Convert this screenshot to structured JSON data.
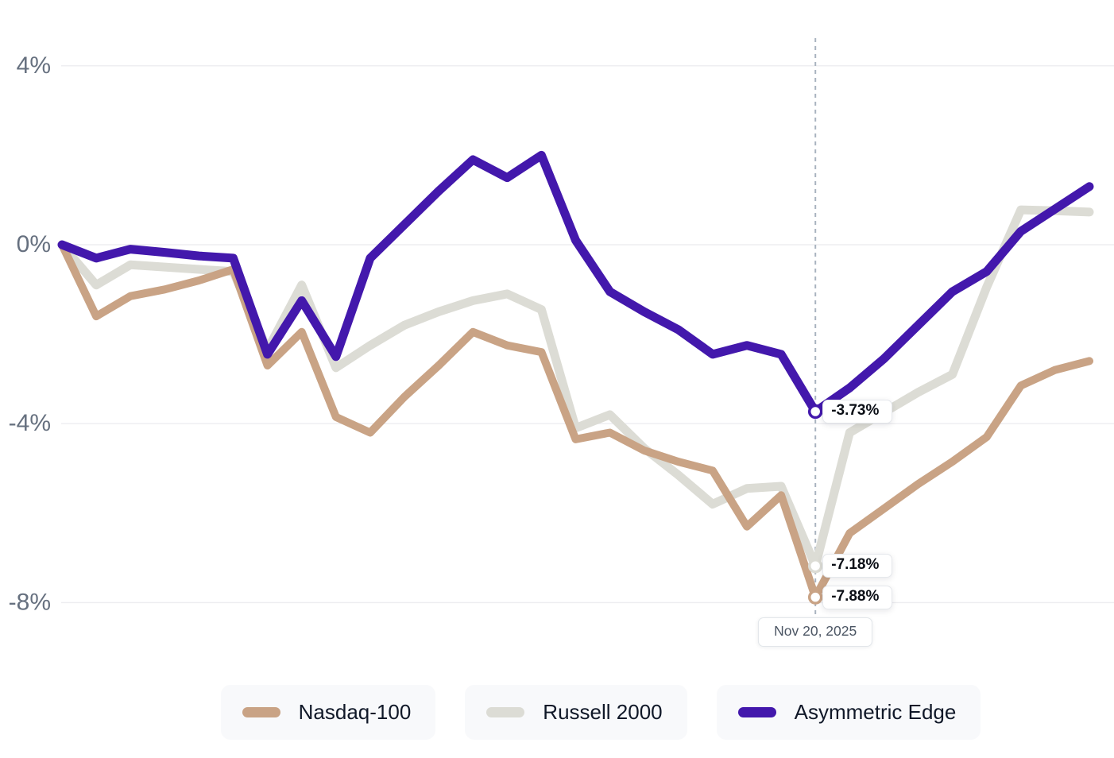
{
  "chart_data": {
    "type": "line",
    "x_count": 31,
    "grid": true,
    "ylim": [
      -8.8,
      4.4
    ],
    "y_ticks": [
      {
        "label": "4%",
        "value": 4
      },
      {
        "label": "0%",
        "value": 0
      },
      {
        "label": "-4%",
        "value": -4
      },
      {
        "label": "-8%",
        "value": -8
      }
    ],
    "annotation": {
      "index": 22,
      "label": "Nov 20, 2025"
    },
    "series": [
      {
        "name": "Nasdaq-100",
        "color": "#c9a385",
        "tooltip": "-7.88%",
        "values": [
          0,
          -1.6,
          -1.15,
          -1.0,
          -0.8,
          -0.55,
          -2.7,
          -1.95,
          -3.85,
          -4.2,
          -3.4,
          -2.7,
          -1.95,
          -2.25,
          -2.4,
          -4.35,
          -4.2,
          -4.6,
          -4.85,
          -5.05,
          -6.3,
          -5.6,
          -7.88,
          -6.45,
          -5.9,
          -5.35,
          -4.85,
          -4.3,
          -3.15,
          -2.8,
          -2.6
        ]
      },
      {
        "name": "Russell 2000",
        "color": "#dcdcd5",
        "tooltip": "-7.18%",
        "values": [
          0,
          -0.9,
          -0.45,
          -0.5,
          -0.55,
          -0.6,
          -2.35,
          -0.9,
          -2.75,
          -2.25,
          -1.8,
          -1.5,
          -1.25,
          -1.1,
          -1.45,
          -4.1,
          -3.8,
          -4.55,
          -5.15,
          -5.8,
          -5.45,
          -5.4,
          -7.18,
          -4.2,
          -3.75,
          -3.3,
          -2.9,
          -0.95,
          0.78,
          0.76,
          0.73
        ]
      },
      {
        "name": "Asymmetric Edge",
        "color": "#4318ac",
        "tooltip": "-3.73%",
        "values": [
          0,
          -0.3,
          -0.1,
          -0.17,
          -0.25,
          -0.3,
          -2.45,
          -1.25,
          -2.5,
          -0.3,
          0.45,
          1.2,
          1.9,
          1.5,
          2.0,
          0.1,
          -1.05,
          -1.5,
          -1.9,
          -2.45,
          -2.25,
          -2.45,
          -3.73,
          -3.2,
          -2.55,
          -1.8,
          -1.05,
          -0.6,
          0.3,
          0.8,
          1.3
        ]
      }
    ]
  },
  "legend": {
    "items": [
      {
        "label": "Nasdaq-100",
        "color": "#c9a385"
      },
      {
        "label": "Russell 2000",
        "color": "#dcdcd5"
      },
      {
        "label": "Asymmetric Edge",
        "color": "#4318ac"
      }
    ]
  }
}
